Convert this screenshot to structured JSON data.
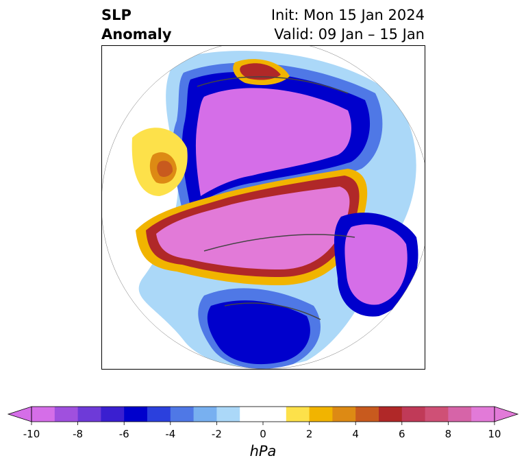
{
  "header": {
    "variable_line1": "SLP",
    "variable_line2": "Anomaly",
    "init_text": "Init: Mon 15 Jan 2024",
    "valid_text": "Valid: 09 Jan – 15 Jan"
  },
  "colorbar": {
    "unit": "hPa",
    "ticks": [
      "-10",
      "-8",
      "-6",
      "-4",
      "-2",
      "0",
      "2",
      "4",
      "6",
      "8",
      "10"
    ],
    "levels": [
      -10,
      -9,
      -8,
      -7,
      -6,
      -5,
      -4,
      -3,
      -2,
      -1,
      1,
      2,
      3,
      4,
      5,
      6,
      7,
      8,
      9,
      10
    ],
    "colors": [
      "#d56ee8",
      "#a050de",
      "#6e3ad8",
      "#3a1fd0",
      "#0000cc",
      "#2b40dd",
      "#4f78e6",
      "#78b0f0",
      "#abd8f8",
      "#ffffff",
      "#fde14a",
      "#f1b400",
      "#dd8a14",
      "#c85a1e",
      "#b02828",
      "#c03a58",
      "#cf5076",
      "#d664a8",
      "#e27ad8"
    ],
    "under_color": "#d56ee8",
    "over_color": "#e27ad8"
  },
  "map": {
    "projection": "north-polar stereographic",
    "features": [
      {
        "name": "negative anomaly over Asia/Siberia",
        "color": "#d56ee8"
      },
      {
        "name": "positive anomaly over Arctic / North America",
        "color": "#e27ad8"
      },
      {
        "name": "negative anomaly over Europe",
        "color": "#d56ee8"
      },
      {
        "name": "negative anomaly over North Atlantic / US",
        "color": "#0000cc"
      },
      {
        "name": "positive anomaly over North Pacific",
        "color": "#f1b400"
      }
    ]
  }
}
